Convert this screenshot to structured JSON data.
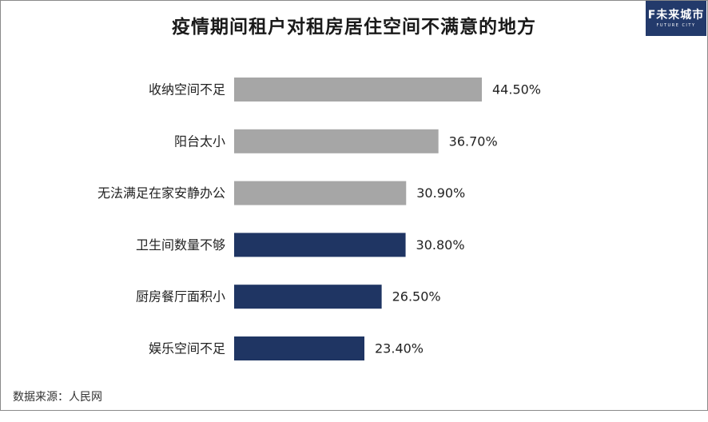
{
  "title": "疫情期间租户对租房居住空间不满意的地方",
  "logo": {
    "main": "F未来城市",
    "sub": "FUTURE CITY"
  },
  "source": "数据来源：人民网",
  "colors": {
    "gray_bar": "#a6a6a6",
    "navy_bar": "#1f3563",
    "label": "#222222"
  },
  "chart_data": {
    "type": "bar",
    "orientation": "horizontal",
    "categories": [
      "收纳空间不足",
      "阳台太小",
      "无法满足在家安静办公",
      "卫生间数量不够",
      "厨房餐厅面积小",
      "娱乐空间不足"
    ],
    "values": [
      44.5,
      36.7,
      30.9,
      30.8,
      26.5,
      23.4
    ],
    "value_labels": [
      "44.50%",
      "36.70%",
      "30.90%",
      "30.80%",
      "26.50%",
      "23.40%"
    ],
    "bar_colors": [
      "gray",
      "gray",
      "gray",
      "navy",
      "navy",
      "navy"
    ],
    "unit": "%",
    "title": "疫情期间租户对租房居住空间不满意的地方",
    "xlabel": "",
    "ylabel": "",
    "grid": false,
    "legend": "none"
  }
}
